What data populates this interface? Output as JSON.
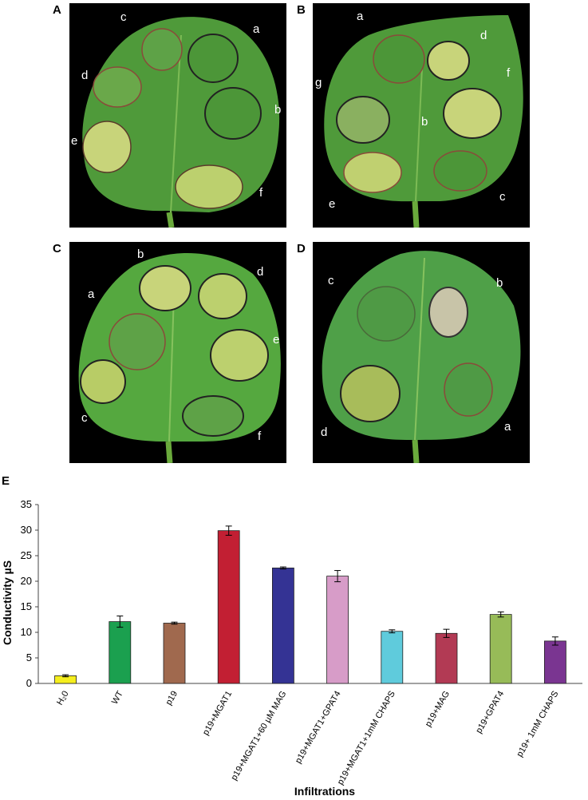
{
  "panels": [
    {
      "letter": "A",
      "spots": [
        "a",
        "b",
        "c",
        "d",
        "e",
        "f"
      ]
    },
    {
      "letter": "B",
      "spots": [
        "a",
        "b",
        "c",
        "d",
        "e",
        "f",
        "g"
      ]
    },
    {
      "letter": "C",
      "spots": [
        "a",
        "b",
        "c",
        "d",
        "e",
        "f"
      ]
    },
    {
      "letter": "D",
      "spots": [
        "a",
        "b",
        "c",
        "d"
      ]
    }
  ],
  "colors": {
    "leaf": "#4f9a3a",
    "leaf_dark": "#3f7f2d",
    "necrosis": "#c8d47a",
    "background": "#000000"
  },
  "chart_data": {
    "panel_letter": "E",
    "type": "bar",
    "ylabel": "Conductivity µS",
    "xlabel": "Infiltrations",
    "ylim": [
      0,
      35
    ],
    "yticks": [
      0,
      5,
      10,
      15,
      20,
      25,
      30,
      35
    ],
    "categories": [
      "H₂0",
      "WT",
      "p19",
      "p19+MGAT1",
      "p19+MGAT1+60 µM MAG",
      "p19+MGAT1+GPAT4",
      "p19+MGAT1+1mM CHAPS",
      "p19+MAG",
      "p19+GPAT4",
      "p19+ 1mM CHAPS"
    ],
    "values": [
      1.5,
      12.1,
      11.8,
      29.9,
      22.6,
      21.0,
      10.2,
      9.8,
      13.5,
      8.3
    ],
    "errors": [
      0.2,
      1.1,
      0.2,
      0.9,
      0.2,
      1.1,
      0.3,
      0.8,
      0.5,
      0.8
    ],
    "colors": [
      "#f5ee1e",
      "#1ba04f",
      "#a0694e",
      "#c21f33",
      "#343394",
      "#d79cc8",
      "#5fcbdc",
      "#b23a54",
      "#97bb58",
      "#7a3591"
    ]
  }
}
